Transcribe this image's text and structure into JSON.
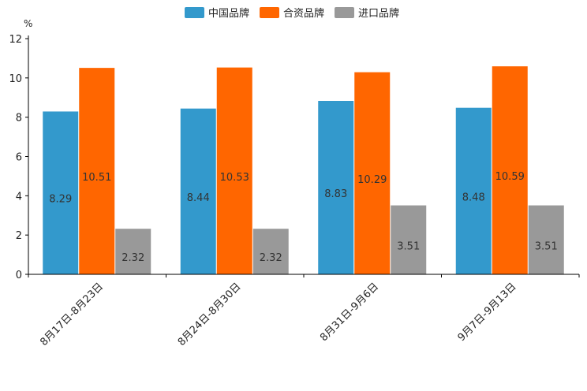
{
  "chart_data": {
    "type": "bar",
    "title": "",
    "ylabel": "%",
    "xlabel": "",
    "ylim": [
      0,
      12
    ],
    "yticks": [
      0,
      2,
      4,
      6,
      8,
      10,
      12
    ],
    "grid": false,
    "legend_position": "top-center",
    "categories": [
      "8月17日-8月23日",
      "8月24日-8月30日",
      "8月31日-9月6日",
      "9月7日-9月13日"
    ],
    "series": [
      {
        "name": "中国品牌",
        "color": "#3399CC",
        "values": [
          8.29,
          8.44,
          8.83,
          8.48
        ]
      },
      {
        "name": "合资品牌",
        "color": "#FF6600",
        "values": [
          10.51,
          10.53,
          10.29,
          10.59
        ]
      },
      {
        "name": "进口品牌",
        "color": "#999999",
        "values": [
          2.32,
          2.32,
          3.51,
          3.51
        ]
      }
    ]
  }
}
